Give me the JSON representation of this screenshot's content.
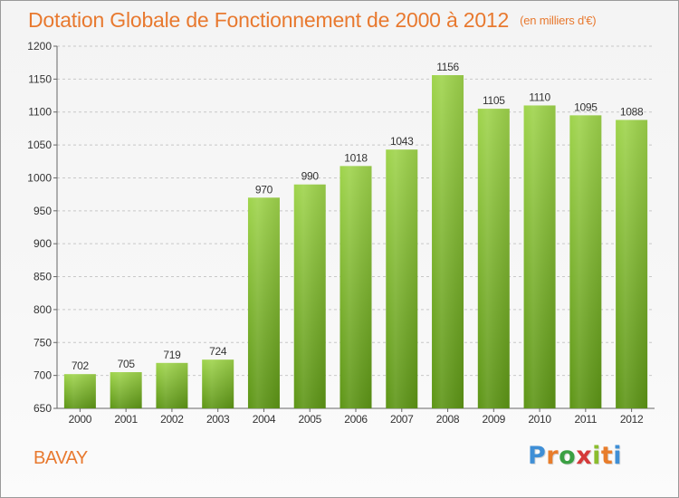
{
  "title": "Dotation Globale de Fonctionnement de 2000 à 2012",
  "unit_note": "(en milliers d'€)",
  "commune": "BAVAY",
  "logo": {
    "text": "Proxiti",
    "letters": [
      "P",
      "r",
      "o",
      "x",
      "i",
      "t",
      "i"
    ]
  },
  "colors": {
    "title": "#e8792f",
    "bar_top": "#9fd44c",
    "bar_bottom": "#5d9516",
    "grid": "#c8c8c8",
    "axis": "#666666"
  },
  "chart_data": {
    "type": "bar",
    "title": "Dotation Globale de Fonctionnement de 2000 à 2012",
    "xlabel": "",
    "ylabel": "",
    "categories": [
      "2000",
      "2001",
      "2002",
      "2003",
      "2004",
      "2005",
      "2006",
      "2007",
      "2008",
      "2009",
      "2010",
      "2011",
      "2012"
    ],
    "values": [
      702,
      705,
      719,
      724,
      970,
      990,
      1018,
      1043,
      1156,
      1105,
      1110,
      1095,
      1088
    ],
    "ylim": [
      650,
      1200
    ],
    "yticks": [
      650,
      700,
      750,
      800,
      850,
      900,
      950,
      1000,
      1050,
      1100,
      1150,
      1200
    ],
    "grid": true,
    "data_labels": true
  }
}
